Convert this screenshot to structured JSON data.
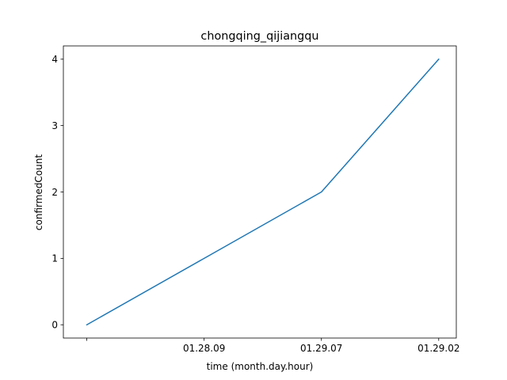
{
  "chart_data": {
    "type": "line",
    "title": "chongqing_qijiangqu",
    "xlabel": "time (month.day.hour)",
    "ylabel": "confirmedCount",
    "categories": [
      "",
      "01.28.09",
      "01.29.07",
      "01.29.02"
    ],
    "series": [
      {
        "values": [
          0,
          1,
          2,
          4
        ],
        "color": "#1f77b4"
      }
    ],
    "xlim": [
      -0.2,
      3.15
    ],
    "ylim": [
      -0.2,
      4.2
    ],
    "yticks": [
      0,
      1,
      2,
      3,
      4
    ],
    "grid": false,
    "legend": "none"
  }
}
